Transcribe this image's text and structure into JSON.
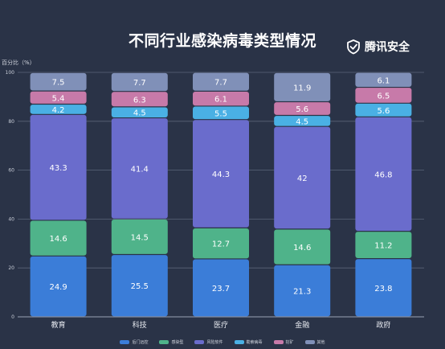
{
  "brand": {
    "name": "腾讯安全",
    "icon": "tencent-security-shield-icon"
  },
  "chart_data": {
    "type": "bar",
    "stacked": true,
    "title": "不同行业感染病毒类型情况",
    "ylabel": "百分比（%）",
    "xlabel": "",
    "ylim": [
      0,
      100
    ],
    "yticks": [
      0,
      20,
      40,
      60,
      80,
      100
    ],
    "grid": true,
    "legend_position": "bottom",
    "categories": [
      "教育",
      "科技",
      "医疗",
      "金融",
      "政府"
    ],
    "series": [
      {
        "name": "后门远控",
        "color": "#3b7dd8",
        "values": [
          24.9,
          25.5,
          23.7,
          21.3,
          23.8
        ]
      },
      {
        "name": "感染型",
        "color": "#4fb38a",
        "values": [
          14.6,
          14.5,
          12.7,
          14.6,
          11.2
        ]
      },
      {
        "name": "风险软件",
        "color": "#6a6ccc",
        "values": [
          43.3,
          41.4,
          44.3,
          42,
          46.8
        ]
      },
      {
        "name": "勒索病毒",
        "color": "#4ab0e4",
        "values": [
          4.2,
          4.5,
          5.5,
          4.5,
          5.6
        ]
      },
      {
        "name": "挖矿",
        "color": "#c77aa9",
        "values": [
          5.4,
          6.3,
          6.1,
          5.6,
          6.5
        ]
      },
      {
        "name": "其他",
        "color": "#8090b8",
        "values": [
          7.5,
          7.7,
          7.7,
          11.9,
          6.1
        ]
      }
    ]
  }
}
